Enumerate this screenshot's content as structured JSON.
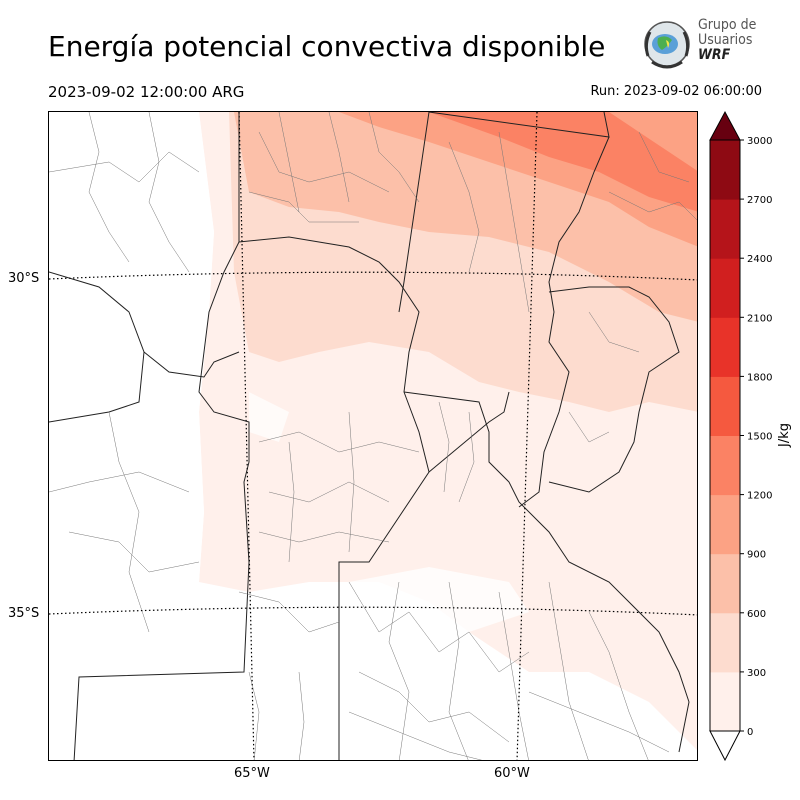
{
  "header": {
    "title": "Energía potencial convectiva disponible",
    "valid_time": "2023-09-02 12:00:00 ARG",
    "run_time": "Run: 2023-09-02 06:00:00"
  },
  "logo": {
    "line1": "Grupo de",
    "line2": "Usuarios",
    "line3": "WRF"
  },
  "map": {
    "lat_labels": [
      "30°S",
      "35°S"
    ],
    "lon_labels": [
      "65°W",
      "60°W"
    ],
    "field": "CAPE"
  },
  "colorbar": {
    "label": "J/kg",
    "ticks": [
      "3000",
      "2700",
      "2400",
      "2100",
      "1800",
      "1500",
      "1200",
      "900",
      "600",
      "300",
      "0"
    ],
    "colors": [
      "#fff0eb",
      "#fddccf",
      "#fcc0a9",
      "#fca284",
      "#fb8264",
      "#f5593f",
      "#e83329",
      "#d11f1f",
      "#b5141a",
      "#8e0a13",
      "#670010"
    ]
  }
}
